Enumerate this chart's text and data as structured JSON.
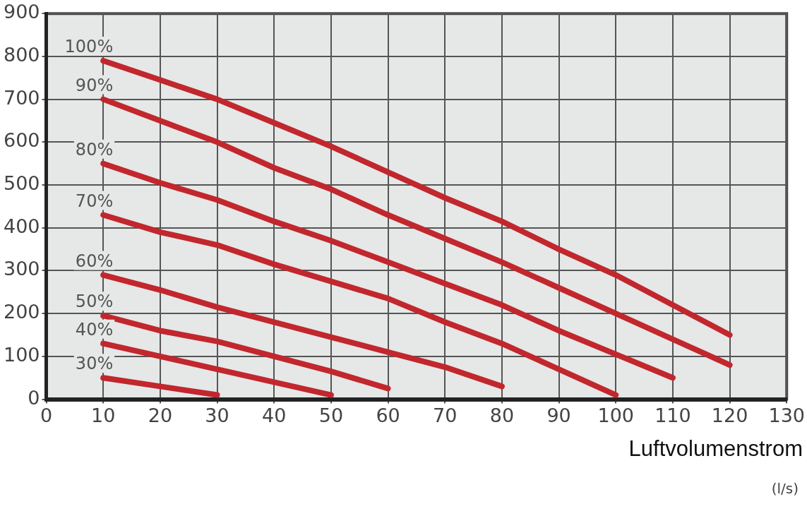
{
  "chart_data": {
    "type": "line",
    "xlabel": "Luftvolumenstrom",
    "annotations": [
      "(l/s)"
    ],
    "x": [
      10,
      20,
      30,
      40,
      50,
      60,
      70,
      80,
      90,
      100,
      110,
      120
    ],
    "series": [
      {
        "name": "100%",
        "color": "#c1272d",
        "values": [
          790,
          745,
          700,
          645,
          590,
          530,
          470,
          415,
          350,
          290,
          220,
          150
        ]
      },
      {
        "name": "90%",
        "color": "#c1272d",
        "values": [
          700,
          650,
          600,
          540,
          490,
          430,
          375,
          320,
          260,
          200,
          140,
          80
        ]
      },
      {
        "name": "80%",
        "color": "#c1272d",
        "values": [
          550,
          505,
          465,
          415,
          370,
          320,
          270,
          220,
          160,
          105,
          50,
          null
        ]
      },
      {
        "name": "70%",
        "color": "#c1272d",
        "values": [
          430,
          390,
          360,
          315,
          275,
          235,
          180,
          130,
          70,
          10,
          null,
          null
        ]
      },
      {
        "name": "60%",
        "color": "#c1272d",
        "values": [
          290,
          255,
          215,
          180,
          145,
          110,
          75,
          30,
          null,
          null,
          null,
          null
        ]
      },
      {
        "name": "50%",
        "color": "#c1272d",
        "values": [
          195,
          160,
          135,
          100,
          65,
          25,
          null,
          null,
          null,
          null,
          null,
          null
        ]
      },
      {
        "name": "40%",
        "color": "#c1272d",
        "values": [
          130,
          100,
          70,
          40,
          10,
          null,
          null,
          null,
          null,
          null,
          null,
          null
        ]
      },
      {
        "name": "30%",
        "color": "#c1272d",
        "values": [
          50,
          30,
          10,
          null,
          null,
          null,
          null,
          null,
          null,
          null,
          null,
          null
        ]
      }
    ],
    "xlim": [
      0,
      130
    ],
    "xticks": [
      0,
      10,
      20,
      30,
      40,
      50,
      60,
      70,
      80,
      90,
      100,
      110,
      120,
      130
    ],
    "ylim": [
      0,
      900
    ],
    "yticks": [
      0,
      100,
      200,
      300,
      400,
      500,
      600,
      700,
      800,
      900
    ],
    "grid": true,
    "legend": false,
    "marker": "none",
    "line_style": "solid"
  }
}
